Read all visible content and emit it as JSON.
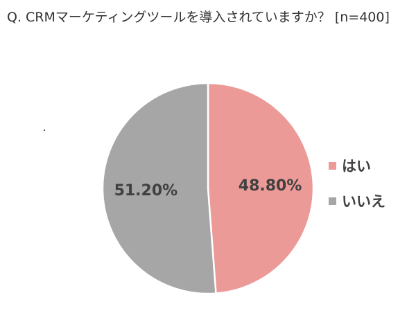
{
  "chart_data": {
    "type": "pie",
    "title": "Q. CRMマーケティングツールを導入されていますか？ [n=400]",
    "categories": [
      "はい",
      "いいえ"
    ],
    "values": [
      48.8,
      51.2
    ],
    "data_labels": [
      "48.80%",
      "51.20%"
    ],
    "colors": [
      "#ec9a98",
      "#a6a6a6"
    ],
    "legend_position": "right",
    "start_angle": "12 o'clock",
    "direction": "clockwise"
  }
}
